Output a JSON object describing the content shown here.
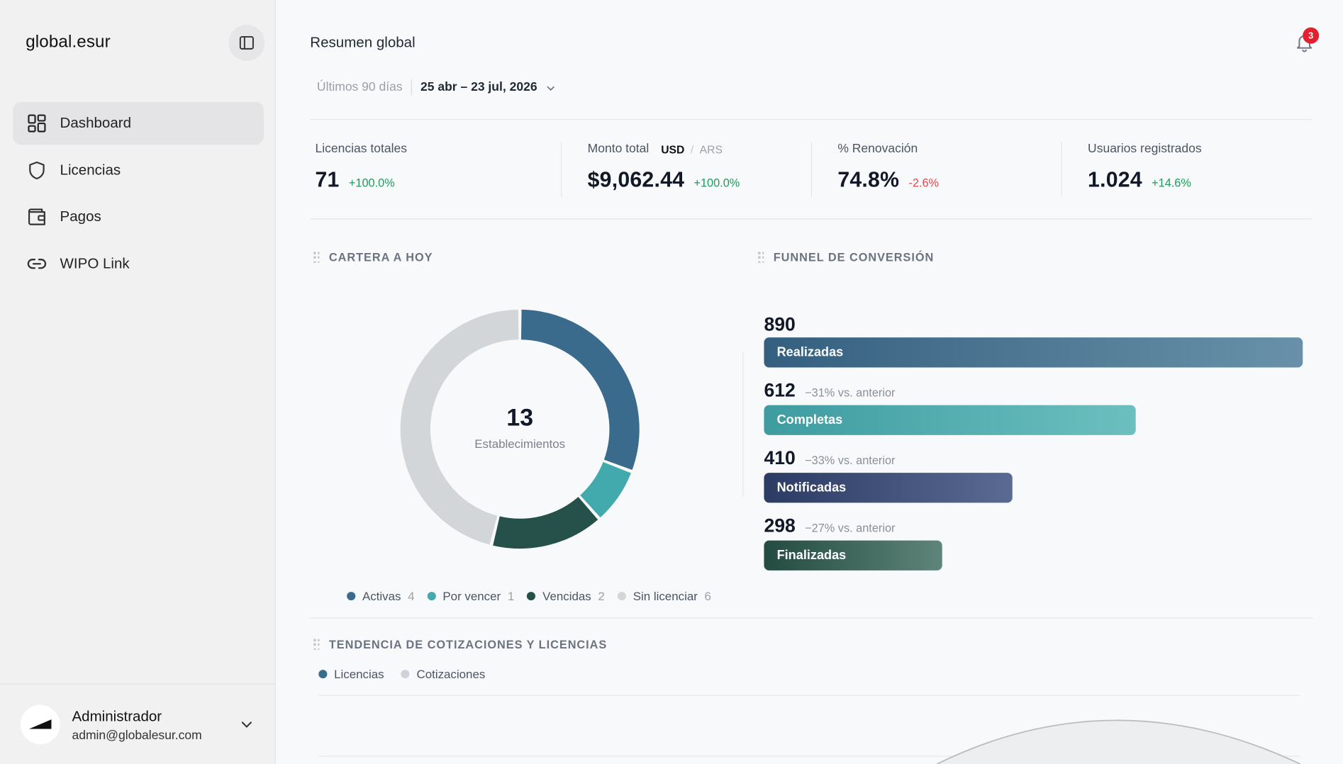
{
  "brand": "global.esur",
  "sidebar": {
    "items": [
      {
        "label": "Dashboard",
        "icon": "dashboard-icon",
        "active": true
      },
      {
        "label": "Licencias",
        "icon": "shield-icon",
        "active": false
      },
      {
        "label": "Pagos",
        "icon": "wallet-icon",
        "active": false
      },
      {
        "label": "WIPO Link",
        "icon": "link-icon",
        "active": false
      }
    ]
  },
  "user": {
    "name": "Administrador",
    "email": "admin@globalesur.com"
  },
  "header": {
    "title": "Resumen global",
    "notifications": "3"
  },
  "date_range": {
    "label": "Últimos 90 días",
    "value": "25 abr – 23 jul, 2026"
  },
  "kpis": [
    {
      "label": "Licencias totales",
      "value": "71",
      "delta": "+100.0%",
      "trend": "up"
    },
    {
      "label": "Monto total",
      "value": "$9,062.44",
      "delta": "+100.0%",
      "trend": "up",
      "currency_active": "USD",
      "currency_inactive": "ARS"
    },
    {
      "label": "% Renovación",
      "value": "74.8%",
      "delta": "-2.6%",
      "trend": "down"
    },
    {
      "label": "Usuarios registrados",
      "value": "1.024",
      "delta": "+14.6%",
      "trend": "up"
    }
  ],
  "portfolio": {
    "title": "CARTERA A HOY",
    "total": "13",
    "total_label": "Establecimientos",
    "segments": [
      {
        "label": "Activas",
        "count": "4",
        "color": "#3a6b8c"
      },
      {
        "label": "Por vencer",
        "count": "1",
        "color": "#42a9ad"
      },
      {
        "label": "Vencidas",
        "count": "2",
        "color": "#26504a"
      },
      {
        "label": "Sin licenciar",
        "count": "6",
        "color": "#d3d6d9"
      }
    ]
  },
  "funnel": {
    "title": "FUNNEL DE CONVERSIÓN",
    "stages": [
      {
        "value": "890",
        "label": "Realizadas",
        "change": ""
      },
      {
        "value": "612",
        "label": "Completas",
        "change": "−31% vs. anterior"
      },
      {
        "value": "410",
        "label": "Notificadas",
        "change": "−33% vs. anterior"
      },
      {
        "value": "298",
        "label": "Finalizadas",
        "change": "−27% vs. anterior"
      }
    ]
  },
  "trend": {
    "title": "TENDENCIA DE COTIZACIONES Y LICENCIAS",
    "legend": [
      {
        "label": "Licencias",
        "color": "#3a6b8c"
      },
      {
        "label": "Cotizaciones",
        "color": "#cfd2d6"
      }
    ]
  }
}
